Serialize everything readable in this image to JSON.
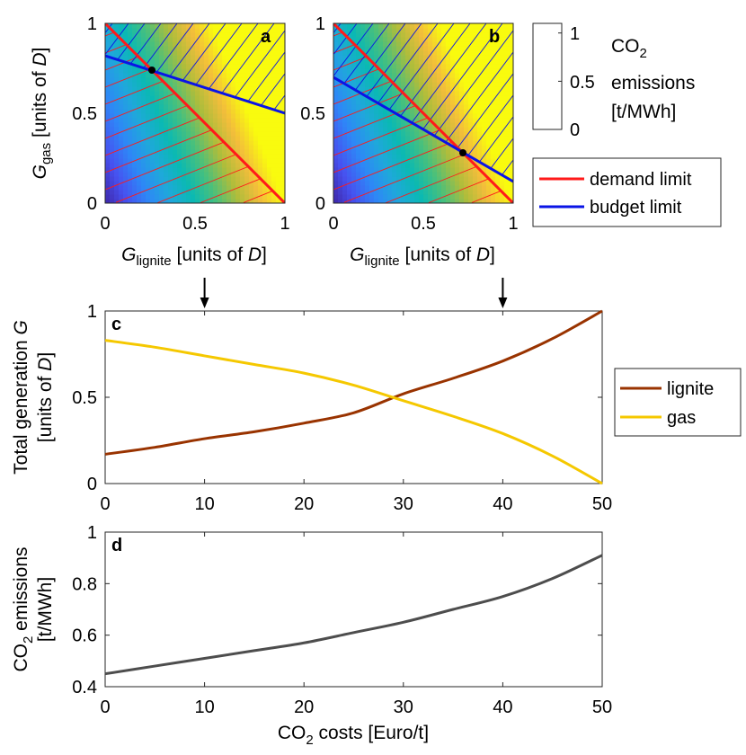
{
  "colors": {
    "demand": "#ff1a1a",
    "budget": "#0a14e6",
    "lignite": "#993300",
    "gas": "#f5c800",
    "emissions": "#4d4d4d",
    "point": "#000000"
  },
  "chart_data": [
    {
      "id": "a",
      "type": "heatmap",
      "panel_label": "a",
      "xlabel_main": "G",
      "xlabel_sub": "lignite",
      "xlabel_units_pre": " [units of ",
      "xlabel_units_var": "D",
      "xlabel_units_post": "]",
      "ylabel_main": "G",
      "ylabel_sub": "gas",
      "ylabel_units_pre": " [units of ",
      "ylabel_units_var": "D",
      "ylabel_units_post": "]",
      "xlim": [
        0,
        1
      ],
      "ylim": [
        0,
        1
      ],
      "xticks": [
        0,
        0.5,
        1
      ],
      "yticks": [
        0,
        0.5,
        1
      ],
      "emission_factor_lignite": 1.1,
      "emission_factor_gas": 0.45,
      "demand_line": [
        [
          0,
          1
        ],
        [
          1,
          0
        ]
      ],
      "budget_line": [
        [
          0,
          0.82
        ],
        [
          1,
          0.5
        ]
      ],
      "intersection": [
        0.26,
        0.74
      ]
    },
    {
      "id": "b",
      "type": "heatmap",
      "panel_label": "b",
      "xlabel_main": "G",
      "xlabel_sub": "lignite",
      "xlabel_units_pre": " [units of ",
      "xlabel_units_var": "D",
      "xlabel_units_post": "]",
      "xlim": [
        0,
        1
      ],
      "ylim": [
        0,
        1
      ],
      "xticks": [
        0,
        0.5,
        1
      ],
      "yticks": [
        0,
        0.5,
        1
      ],
      "demand_line": [
        [
          0,
          1
        ],
        [
          1,
          0
        ]
      ],
      "budget_line": [
        [
          0,
          0.7
        ],
        [
          1,
          0.12
        ]
      ],
      "intersection": [
        0.72,
        0.28
      ]
    },
    {
      "id": "colorbar",
      "type": "colorbar",
      "ticks": [
        0,
        0.5,
        1
      ],
      "range": [
        0,
        1.1
      ],
      "title_main": "CO",
      "title_sub": "2",
      "title_line2": "emissions",
      "title_line3": "[t/MWh]"
    },
    {
      "id": "c",
      "type": "line",
      "panel_label": "c",
      "ylabel_line1_pre": "Total generation ",
      "ylabel_line1_var": "G",
      "ylabel_line2_pre": "[units of ",
      "ylabel_line2_var": "D",
      "ylabel_line2_post": "]",
      "xlim": [
        0,
        50
      ],
      "ylim": [
        0,
        1
      ],
      "xticks": [
        0,
        10,
        20,
        30,
        40,
        50
      ],
      "yticks": [
        0,
        0.5,
        1
      ],
      "markers_at_x": [
        10,
        40
      ],
      "series": [
        {
          "name": "lignite",
          "x": [
            0,
            5,
            10,
            15,
            20,
            25,
            30,
            35,
            40,
            45,
            50
          ],
          "values": [
            0.17,
            0.21,
            0.26,
            0.3,
            0.35,
            0.41,
            0.52,
            0.61,
            0.71,
            0.84,
            1.0
          ]
        },
        {
          "name": "gas",
          "x": [
            0,
            5,
            10,
            15,
            20,
            25,
            30,
            35,
            40,
            45,
            50
          ],
          "values": [
            0.83,
            0.79,
            0.74,
            0.69,
            0.64,
            0.57,
            0.48,
            0.39,
            0.29,
            0.16,
            0.0
          ]
        }
      ]
    },
    {
      "id": "d",
      "type": "line",
      "panel_label": "d",
      "ylabel_line1_main": "CO",
      "ylabel_line1_sub": "2",
      "ylabel_line1_post": " emissions",
      "ylabel_line2": "[t/MWh]",
      "xlabel_main": "CO",
      "xlabel_sub": "2",
      "xlabel_post": " costs [Euro/t]",
      "xlim": [
        0,
        50
      ],
      "ylim": [
        0.4,
        1
      ],
      "xticks": [
        0,
        10,
        20,
        30,
        40,
        50
      ],
      "yticks": [
        0.4,
        0.6,
        0.8,
        1
      ],
      "series": [
        {
          "name": "emissions",
          "x": [
            0,
            5,
            10,
            15,
            20,
            25,
            30,
            35,
            40,
            45,
            50
          ],
          "values": [
            0.45,
            0.48,
            0.51,
            0.54,
            0.57,
            0.61,
            0.65,
            0.7,
            0.75,
            0.82,
            0.91
          ]
        }
      ]
    }
  ],
  "legend_ab": {
    "items": [
      {
        "label": "demand limit"
      },
      {
        "label": "budget limit"
      }
    ]
  },
  "legend_c": {
    "items": [
      {
        "label": "lignite"
      },
      {
        "label": "gas"
      }
    ]
  }
}
